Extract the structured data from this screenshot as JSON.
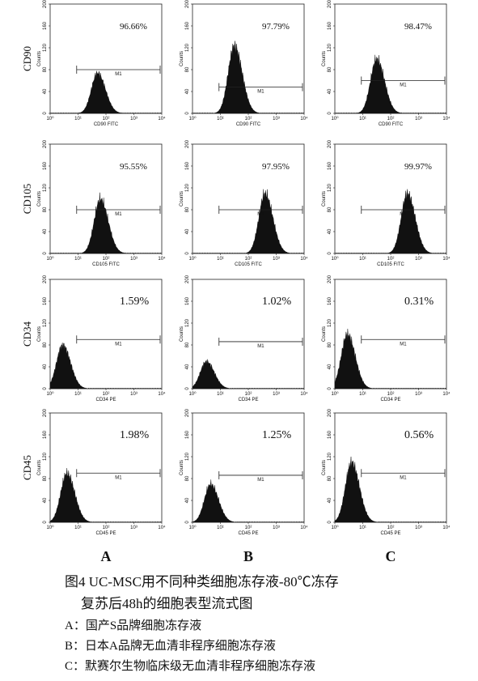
{
  "figure": {
    "row_labels": [
      "CD90",
      "CD105",
      "CD34",
      "CD45"
    ],
    "column_labels": [
      "A",
      "B",
      "C"
    ],
    "y_axis_label": "Counts",
    "gate_label": "M1",
    "yticks": [
      0,
      40,
      80,
      120,
      160,
      200
    ],
    "xticks": [
      {
        "value": 0,
        "label": "10⁰"
      },
      {
        "value": 1,
        "label": "10¹"
      },
      {
        "value": 2,
        "label": "10²"
      },
      {
        "value": 3,
        "label": "10³"
      },
      {
        "value": 4,
        "label": "10⁴"
      }
    ],
    "panels": [
      [
        {
          "percent": "96.66%",
          "x_label": "CD90 FITC"
        },
        {
          "percent": "97.79%",
          "x_label": "CD90 FITC"
        },
        {
          "percent": "98.47%",
          "x_label": "CD90 FITC"
        }
      ],
      [
        {
          "percent": "95.55%",
          "x_label": "CD105 FITC"
        },
        {
          "percent": "97.95%",
          "x_label": "CD105 FITC"
        },
        {
          "percent": "99.97%",
          "x_label": "CD105 FITC"
        }
      ],
      [
        {
          "percent": "1.59%",
          "x_label": "CD34 PE"
        },
        {
          "percent": "1.02%",
          "x_label": "CD34 PE"
        },
        {
          "percent": "0.31%",
          "x_label": "CD34 PE"
        }
      ],
      [
        {
          "percent": "1.98%",
          "x_label": "CD45 PE"
        },
        {
          "percent": "1.25%",
          "x_label": "CD45 PE"
        },
        {
          "percent": "0.56%",
          "x_label": "CD45 PE"
        }
      ]
    ]
  },
  "caption": {
    "title_line1": "图4 UC-MSC用不同种类细胞冻存液-80℃冻存",
    "title_line2": "复苏后48h的细胞表型流式图",
    "legend": [
      "A：国产S品牌细胞冻存液",
      "B：日本A品牌无血清非程序细胞冻存液",
      "C：默赛尔生物临床级无血清非程序细胞冻存液"
    ]
  }
}
